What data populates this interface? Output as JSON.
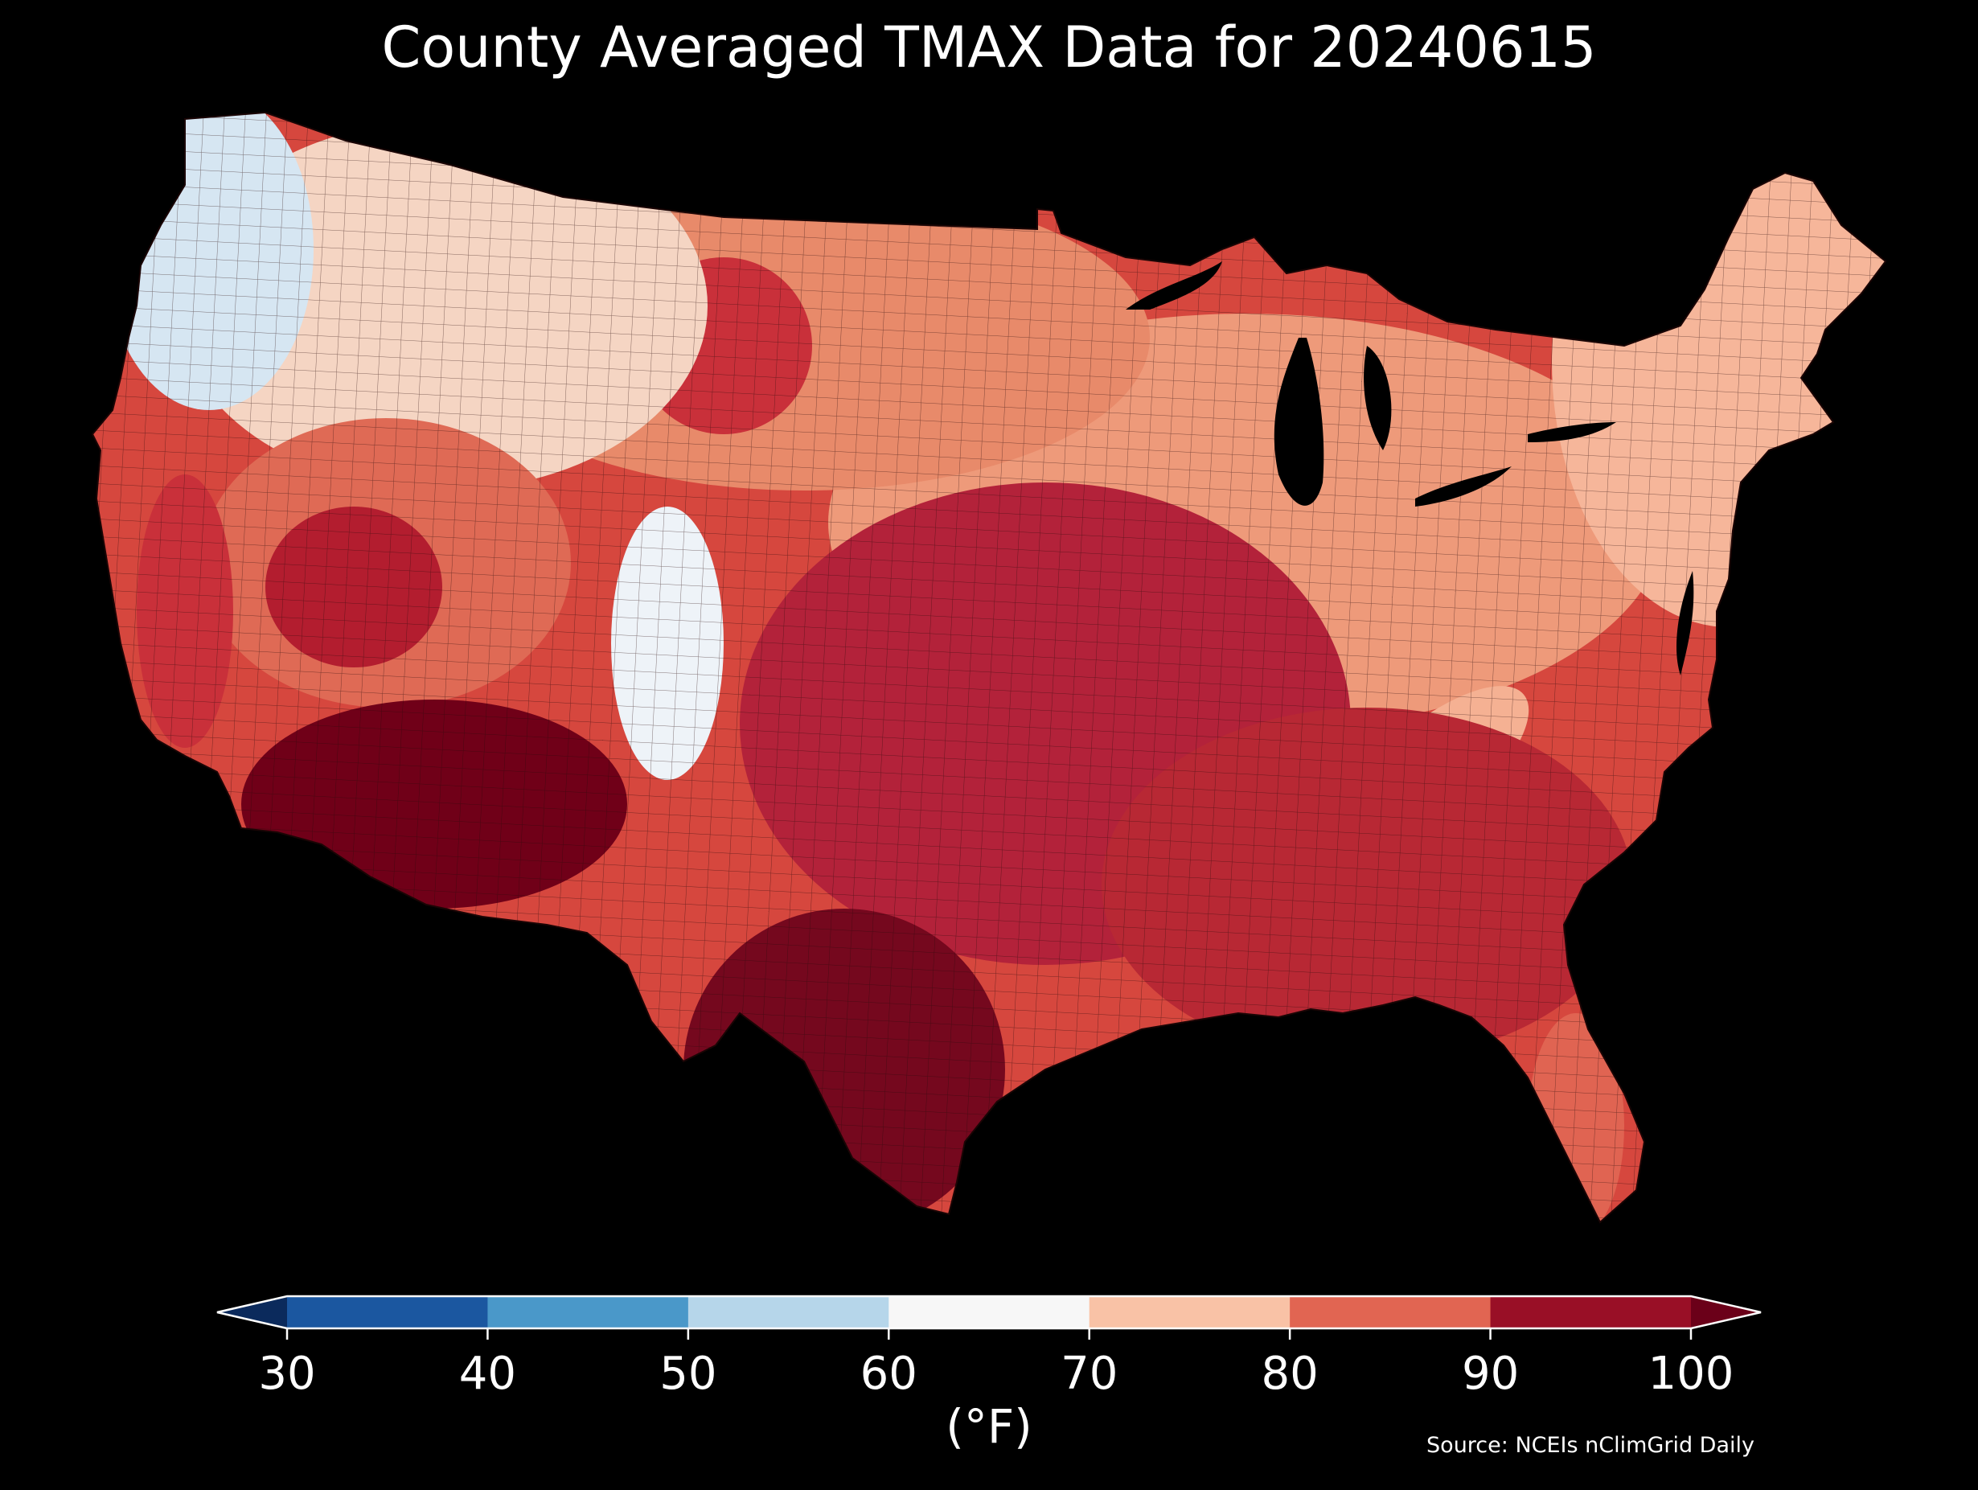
{
  "title": "County Averaged TMAX Data for 20240615",
  "source": "Source: NCEIs nClimGrid Daily",
  "colorbar": {
    "label": "(°F)",
    "ticks": [
      "30",
      "40",
      "50",
      "60",
      "70",
      "80",
      "90",
      "100"
    ],
    "bins": [
      {
        "min": 30,
        "max": 40,
        "color": "#1b57a0"
      },
      {
        "min": 40,
        "max": 50,
        "color": "#4a98c9"
      },
      {
        "min": 50,
        "max": 60,
        "color": "#b6d6ea"
      },
      {
        "min": 60,
        "max": 70,
        "color": "#f7f7f7"
      },
      {
        "min": 70,
        "max": 80,
        "color": "#f9c2a6"
      },
      {
        "min": 80,
        "max": 90,
        "color": "#e16552"
      },
      {
        "min": 90,
        "max": 100,
        "color": "#990f26"
      }
    ],
    "under_color": "#0b2a5c",
    "over_color": "#6b0019"
  },
  "map": {
    "base_color": "#d6473e",
    "region_colors": {
      "pacific_nw": "#d6e6f2",
      "north_rockies": "#f5d5c3",
      "northern_plains": "#e88a6a",
      "nebraska_core": "#c9303a",
      "great_basin": "#df6a55",
      "nevada_hot": "#b31d2f",
      "colorado_rockies": "#eef3f8",
      "desert_southwest": "#700018",
      "central_valley": "#c9303a",
      "south_texas": "#75081e",
      "southern_plains": "#b3223a",
      "southeast": "#b82834",
      "great_lakes": "#ee9a7a",
      "northeast": "#f6b69a",
      "appalachian_ridge": "#f5b193",
      "florida_peninsula": "#e06452",
      "lakes_water": "#000000"
    }
  }
}
